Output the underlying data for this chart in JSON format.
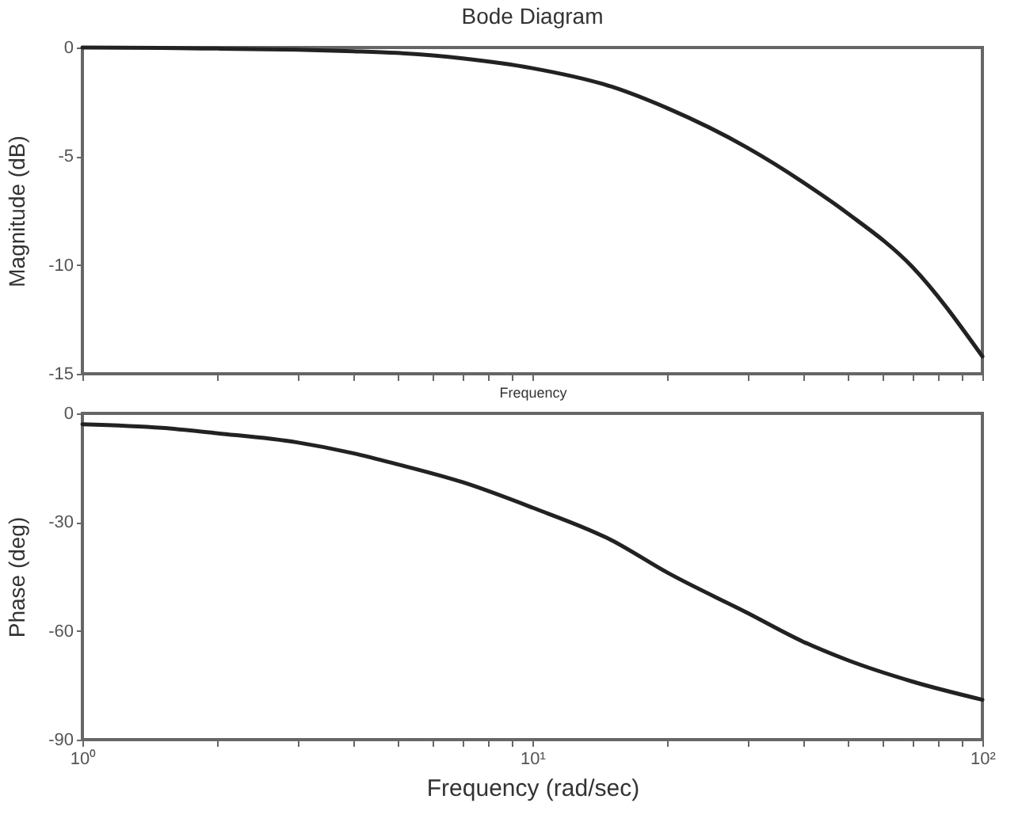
{
  "chart_data": [
    {
      "type": "line",
      "title": "Bode Diagram",
      "xlabel": "Frequency",
      "ylabel": "Magnitude (dB)",
      "log": "x",
      "tick_labels": "y",
      "x": [
        1,
        1.5,
        2,
        3,
        4,
        5,
        7,
        10,
        15,
        20,
        30,
        40,
        50,
        70,
        100
      ],
      "series": [
        {
          "color": "#222222",
          "values": [
            0,
            -0.02,
            -0.05,
            -0.1,
            -0.17,
            -0.25,
            -0.5,
            -0.95,
            -1.8,
            -2.8,
            -4.6,
            -6.2,
            -7.6,
            -10.1,
            -14.2
          ]
        }
      ],
      "xlim": [
        1,
        100
      ],
      "ylim": [
        -15,
        0
      ],
      "xticks": [
        {
          "value": 1,
          "label": null
        },
        {
          "value": 2,
          "label": null
        },
        {
          "value": 3,
          "label": null
        },
        {
          "value": 4,
          "label": null
        },
        {
          "value": 5,
          "label": null
        },
        {
          "value": 6,
          "label": null
        },
        {
          "value": 7,
          "label": null
        },
        {
          "value": 8,
          "label": null
        },
        {
          "value": 9,
          "label": null
        },
        {
          "value": 10,
          "label": null
        },
        {
          "value": 20,
          "label": null
        },
        {
          "value": 30,
          "label": null
        },
        {
          "value": 40,
          "label": null
        },
        {
          "value": 50,
          "label": null
        },
        {
          "value": 60,
          "label": null
        },
        {
          "value": 70,
          "label": null
        },
        {
          "value": 80,
          "label": null
        },
        {
          "value": 90,
          "label": null
        },
        {
          "value": 100,
          "label": null
        }
      ],
      "yticks": [
        0,
        -5,
        -10,
        -15
      ]
    },
    {
      "type": "line",
      "xlabel": "Frequency (rad/sec)",
      "ylabel": "Phase (deg)",
      "log": "x",
      "x": [
        1,
        1.5,
        2,
        3,
        4,
        5,
        7,
        10,
        15,
        20,
        30,
        40,
        50,
        70,
        100
      ],
      "series": [
        {
          "color": "#222222",
          "values": [
            -3,
            -4,
            -5.5,
            -8,
            -11,
            -14,
            -19,
            -26,
            -35,
            -44,
            -55,
            -63,
            -68,
            -74,
            -79
          ]
        }
      ],
      "xlim": [
        1,
        100
      ],
      "ylim": [
        -90,
        0
      ],
      "xticks": [
        {
          "value": 1,
          "label": "10⁰"
        },
        {
          "value": 2,
          "label": null
        },
        {
          "value": 3,
          "label": null
        },
        {
          "value": 4,
          "label": null
        },
        {
          "value": 5,
          "label": null
        },
        {
          "value": 6,
          "label": null
        },
        {
          "value": 7,
          "label": null
        },
        {
          "value": 8,
          "label": null
        },
        {
          "value": 9,
          "label": null
        },
        {
          "value": 10,
          "label": "10¹"
        },
        {
          "value": 20,
          "label": null
        },
        {
          "value": 30,
          "label": null
        },
        {
          "value": 40,
          "label": null
        },
        {
          "value": 50,
          "label": null
        },
        {
          "value": 60,
          "label": null
        },
        {
          "value": 70,
          "label": null
        },
        {
          "value": 80,
          "label": null
        },
        {
          "value": 90,
          "label": null
        },
        {
          "value": 100,
          "label": "10²"
        }
      ],
      "yticks": [
        0,
        -30,
        -60,
        -90
      ]
    }
  ]
}
